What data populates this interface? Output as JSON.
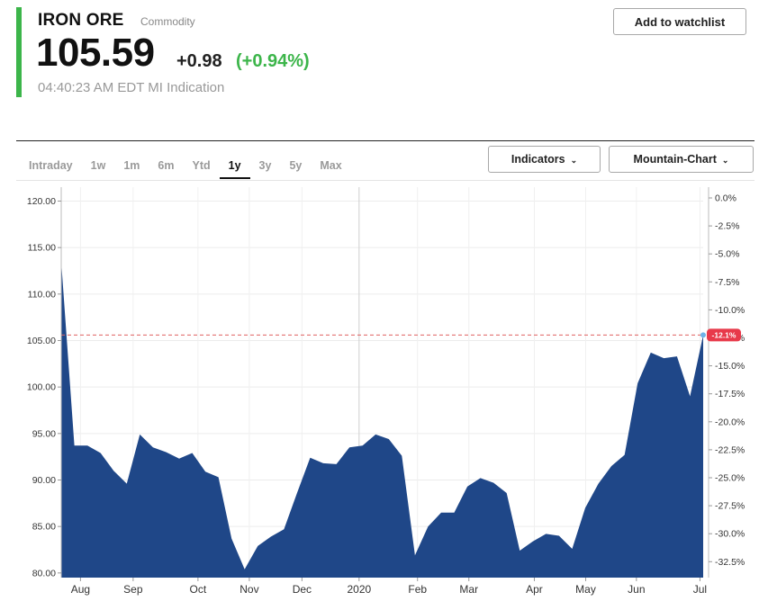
{
  "quote": {
    "name": "IRON ORE",
    "type": "Commodity",
    "price": "105.59",
    "change": "+0.98",
    "change_pct": "(+0.94%)",
    "timestamp": "04:40:23 AM EDT MI Indication"
  },
  "buttons": {
    "watchlist": "Add to watchlist",
    "indicators": "Indicators",
    "chart_type": "Mountain-Chart"
  },
  "tabs": [
    {
      "label": "Intraday"
    },
    {
      "label": "1w"
    },
    {
      "label": "1m"
    },
    {
      "label": "6m"
    },
    {
      "label": "Ytd"
    },
    {
      "label": "1y",
      "active": true
    },
    {
      "label": "3y"
    },
    {
      "label": "5y"
    },
    {
      "label": "Max"
    }
  ],
  "colors": {
    "accent_bar": "#3cb54a",
    "positive": "#3cb54a",
    "area_fill": "#1f4788",
    "reference_line": "#e06060",
    "badge": "#e8394a",
    "last_point": "#6fb3e8"
  },
  "chart_data": {
    "type": "area",
    "series": [
      {
        "values": [
          113.5,
          93.7,
          93.7,
          92.9,
          91.0,
          89.6,
          94.9,
          93.5,
          93.0,
          92.3,
          92.9,
          90.9,
          90.3,
          83.7,
          80.4,
          82.9,
          83.9,
          84.7,
          88.6,
          92.4,
          91.8,
          91.7,
          93.5,
          93.7,
          94.9,
          94.4,
          92.6,
          81.9,
          85.0,
          86.5,
          86.5,
          89.3,
          90.2,
          89.7,
          88.6,
          82.4,
          83.4,
          84.2,
          84.0,
          82.6,
          87.0,
          89.6,
          91.5,
          92.7,
          100.4,
          103.7,
          103.1,
          103.3,
          99.0,
          105.59
        ]
      }
    ],
    "last_value": 105.59,
    "last_pct_label": "-12.1%",
    "y_left": {
      "ticks": [
        "120.00",
        "115.00",
        "110.00",
        "105.00",
        "100.00",
        "95.00",
        "90.00",
        "85.00",
        "80.00"
      ],
      "min": 79.5,
      "max": 121.5
    },
    "y_right": {
      "ticks": [
        "0.0%",
        "-2.5%",
        "-5.0%",
        "-7.5%",
        "-10.0%",
        "-12.5%",
        "-15.0%",
        "-17.5%",
        "-20.0%",
        "-22.5%",
        "-25.0%",
        "-27.5%",
        "-30.0%",
        "-32.5%"
      ]
    },
    "x_ticks": [
      "Aug",
      "Sep",
      "Oct",
      "Nov",
      "Dec",
      "2020",
      "Feb",
      "Mar",
      "Apr",
      "May",
      "Jun",
      "Jul"
    ],
    "grid": true
  }
}
